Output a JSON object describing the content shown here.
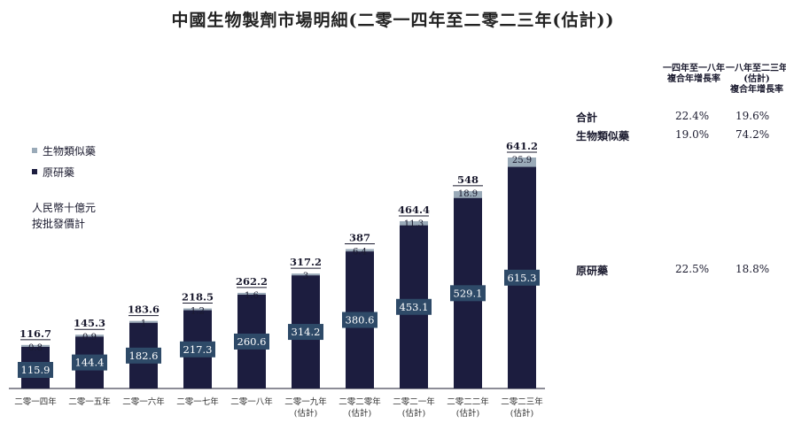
{
  "chart_data": {
    "type": "bar",
    "stacked": true,
    "title": "中國生物製劑市場明細(二零一四年至二零二三年(估計))",
    "unit_lines": [
      "人民幣十億元",
      "按批發價計"
    ],
    "categories": [
      [
        "二零一四年"
      ],
      [
        "二零一五年"
      ],
      [
        "二零一六年"
      ],
      [
        "二零一七年"
      ],
      [
        "二零一八年"
      ],
      [
        "二零一九年",
        "(估計)"
      ],
      [
        "二零二零年",
        "(估計)"
      ],
      [
        "二零二一年",
        "(估計)"
      ],
      [
        "二零二二年",
        "(估計)"
      ],
      [
        "二零二三年",
        "(估計)"
      ]
    ],
    "totals": [
      116.7,
      145.3,
      183.6,
      218.5,
      262.2,
      317.2,
      387.0,
      464.4,
      548.0,
      641.2
    ],
    "series": [
      {
        "name": "原研藥",
        "color": "#1c1d3f",
        "values": [
          115.9,
          144.4,
          182.6,
          217.3,
          260.6,
          314.2,
          380.6,
          453.1,
          529.1,
          615.3
        ]
      },
      {
        "name": "生物類似藥",
        "color": "#9aaab8",
        "values": [
          0.8,
          0.9,
          1.0,
          1.2,
          1.6,
          3.0,
          6.4,
          11.3,
          18.9,
          25.9
        ]
      }
    ],
    "legend": [
      "生物類似藥",
      "原研藥"
    ],
    "label_box_color": "#2e4a68",
    "ylim": [
      0,
      641.2
    ]
  },
  "cagr": {
    "headers": [
      [
        "一四年至一八年",
        "複合年增長率"
      ],
      [
        "一八年至二三年",
        "(估計)",
        "複合年增長率"
      ]
    ],
    "rows": [
      {
        "label": "合計",
        "v1": "22.4%",
        "v2": "19.6%"
      },
      {
        "label": "生物類似藥",
        "v1": "19.0%",
        "v2": "74.2%"
      },
      {
        "label": "原研藥",
        "v1": "22.5%",
        "v2": "18.8%"
      }
    ]
  }
}
